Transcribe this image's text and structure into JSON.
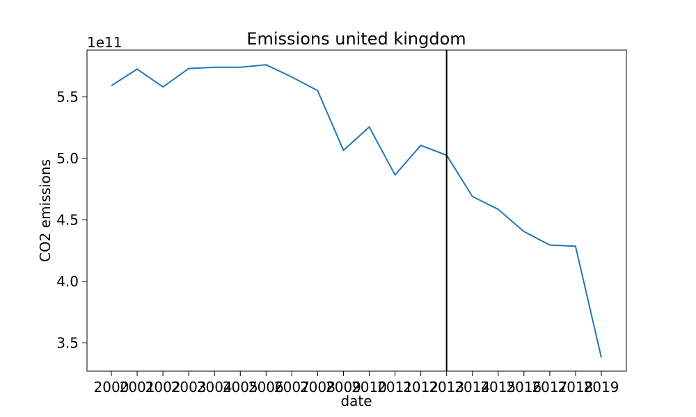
{
  "chart_data": {
    "type": "line",
    "title": "Emissions united kingdom",
    "xlabel": "date",
    "ylabel": "CO2 emissions",
    "y_offset_label": "1e11",
    "ylim": [
      327000000000.0,
      588000000000.0
    ],
    "yticks": [
      350000000000.0,
      400000000000.0,
      450000000000.0,
      500000000000.0,
      550000000000.0
    ],
    "ytick_labels": [
      "3.5",
      "4.0",
      "4.5",
      "5.0",
      "5.5"
    ],
    "x": [
      "2000",
      "2001",
      "2002",
      "2003",
      "2004",
      "2005",
      "2006",
      "2007",
      "2008",
      "2009",
      "2010",
      "2011",
      "2012",
      "2013",
      "2014",
      "2015",
      "2016",
      "2017",
      "2018",
      "2019"
    ],
    "series": [
      {
        "values": [
          559000000000.0,
          572500000000.0,
          558000000000.0,
          573000000000.0,
          574000000000.0,
          574000000000.0,
          576000000000.0,
          566000000000.0,
          555000000000.0,
          506500000000.0,
          525500000000.0,
          486500000000.0,
          510500000000.0,
          502500000000.0,
          469000000000.0,
          458500000000.0,
          440500000000.0,
          429500000000.0,
          428500000000.0,
          338000000000.0
        ],
        "color": "#1f77b4"
      }
    ],
    "vertical_line": {
      "x": "2013",
      "color": "#000000"
    },
    "grid": false,
    "legend": "none"
  }
}
